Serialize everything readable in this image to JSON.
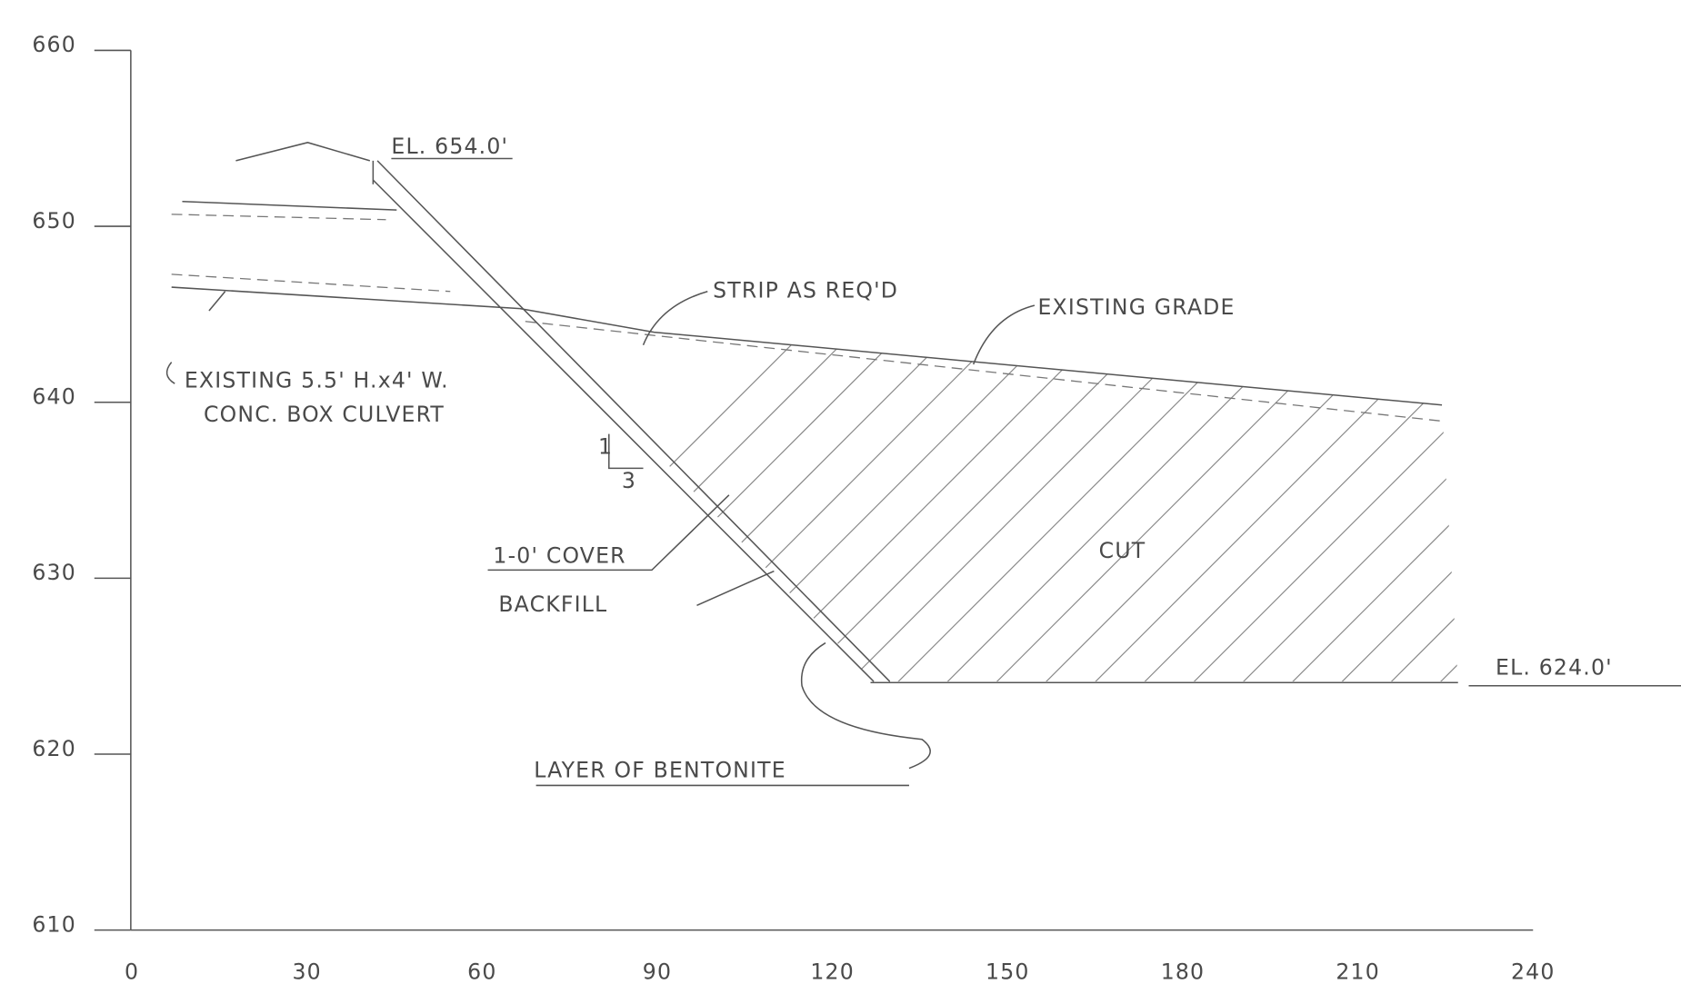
{
  "y_axis": {
    "labels": [
      "660",
      "650",
      "640",
      "630",
      "620",
      "610"
    ]
  },
  "x_axis": {
    "labels": [
      "0",
      "30",
      "60",
      "90",
      "120",
      "150",
      "180",
      "210",
      "240"
    ]
  },
  "annotations": {
    "top_elevation": "EL. 654.0'",
    "strip": "STRIP AS REQ'D",
    "existing_grade": "EXISTING GRADE",
    "culvert_line1": "EXISTING 5.5' H.x4' W.",
    "culvert_line2": "CONC. BOX CULVERT",
    "slope_rise": "1",
    "slope_run": "3",
    "cover": "1-0' COVER",
    "backfill": "BACKFILL",
    "cut": "CUT",
    "bottom_elevation": "EL. 624.0'",
    "bentonite": "LAYER OF BENTONITE"
  }
}
